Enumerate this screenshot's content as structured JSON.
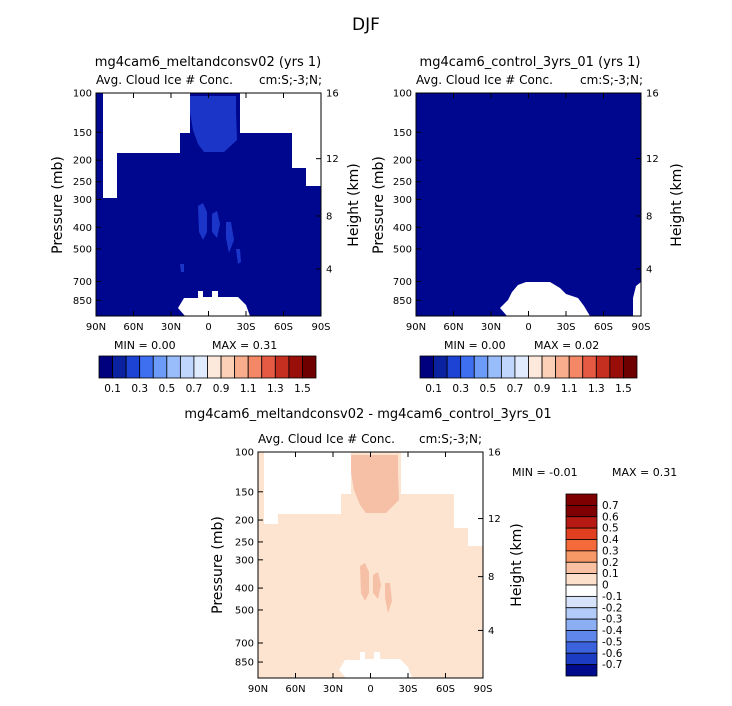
{
  "figure": {
    "title": "DJF",
    "panels": [
      {
        "title": "mg4cam6_meltandconsv02 (yrs 1)",
        "left_subtitle": "Avg. Cloud Ice # Conc.",
        "right_subtitle": "cm:S;-3;N;",
        "ylabel": "Pressure (mb)",
        "y2label": "Height (km)",
        "min_text": "MIN =    0.00",
        "max_text": "MAX =    0.31"
      },
      {
        "title": "mg4cam6_control_3yrs_01 (yrs 1)",
        "left_subtitle": "Avg. Cloud Ice # Conc.",
        "right_subtitle": "cm:S;-3;N;",
        "ylabel": "Pressure (mb)",
        "y2label": "Height (km)",
        "min_text": "MIN =    0.00",
        "max_text": "MAX =    0.02"
      },
      {
        "title": "mg4cam6_meltandconsv02 - mg4cam6_control_3yrs_01",
        "left_subtitle": "Avg. Cloud Ice # Conc.",
        "right_subtitle": "cm:S;-3;N;",
        "ylabel": "Pressure (mb)",
        "y2label": "Height (km)",
        "min_text": "MIN =   -0.01",
        "max_text": "MAX =    0.31"
      }
    ],
    "x_ticks": [
      "90N",
      "60N",
      "30N",
      "0",
      "30S",
      "60S",
      "90S"
    ],
    "p_ticks": [
      "100",
      "150",
      "200",
      "250",
      "300",
      "400",
      "500",
      "700",
      "850"
    ],
    "h_ticks": [
      "16",
      "12",
      "8",
      "4"
    ],
    "colorbar_top_labels": [
      "0.1",
      "0.3",
      "0.5",
      "0.7",
      "0.9",
      "1.1",
      "1.3",
      "1.5"
    ],
    "colorbar_diff_labels": [
      "0.7",
      "0.6",
      "0.5",
      "0.4",
      "0.3",
      "0.2",
      "0.1",
      "0",
      "-0.1",
      "-0.2",
      "-0.3",
      "-0.4",
      "-0.5",
      "-0.6",
      "-0.7"
    ],
    "colors": {
      "navy": "#00078f",
      "mid_blue": "#1a35c8",
      "diff_base": "#fde4d0",
      "diff_hi": "#f6c0a6",
      "top_bar": [
        "#00007f",
        "#0a22a0",
        "#1c43d4",
        "#3d6ff0",
        "#6c9cf8",
        "#99bcfb",
        "#c0d6fc",
        "#e0ebfd",
        "#fde9dc",
        "#fbd0b6",
        "#f8ad8c",
        "#f38766",
        "#e45a43",
        "#c42f1f",
        "#9a0e0a",
        "#6e0000"
      ],
      "diff_bar": [
        "#7e0000",
        "#b71a15",
        "#e0401f",
        "#f56a3a",
        "#f79966",
        "#f9c0a2",
        "#fde0cc",
        "#ffffff",
        "#d6e3fb",
        "#b2cbf8",
        "#8caef3",
        "#5f86ea",
        "#3a63dd",
        "#1c3dc3",
        "#000b8c"
      ]
    }
  },
  "chart_data": [
    {
      "type": "heatmap",
      "title": "mg4cam6_meltandconsv02 (yrs 1)",
      "subtitle": "Avg. Cloud Ice # Conc.",
      "units": "cm:S;-3;N;",
      "xlabel": "",
      "ylabel": "Pressure (mb)",
      "y2label": "Height (km)",
      "x_ticks": [
        "90N",
        "60N",
        "30N",
        "0",
        "30S",
        "60S",
        "90S"
      ],
      "xlim": [
        90,
        -90
      ],
      "ylim": [
        1000,
        100
      ],
      "y_scale": "log",
      "y2_ticks": [
        16,
        12,
        8,
        4
      ],
      "min": 0.0,
      "max": 0.31,
      "colorbar_levels": [
        0.1,
        0.3,
        0.5,
        0.7,
        0.9,
        1.1,
        1.3,
        1.5
      ]
    },
    {
      "type": "heatmap",
      "title": "mg4cam6_control_3yrs_01 (yrs 1)",
      "subtitle": "Avg. Cloud Ice # Conc.",
      "units": "cm:S;-3;N;",
      "xlabel": "",
      "ylabel": "Pressure (mb)",
      "y2label": "Height (km)",
      "x_ticks": [
        "90N",
        "60N",
        "30N",
        "0",
        "30S",
        "60S",
        "90S"
      ],
      "xlim": [
        90,
        -90
      ],
      "ylim": [
        1000,
        100
      ],
      "y_scale": "log",
      "y2_ticks": [
        16,
        12,
        8,
        4
      ],
      "min": 0.0,
      "max": 0.02,
      "colorbar_levels": [
        0.1,
        0.3,
        0.5,
        0.7,
        0.9,
        1.1,
        1.3,
        1.5
      ]
    },
    {
      "type": "heatmap",
      "title": "mg4cam6_meltandconsv02 - mg4cam6_control_3yrs_01",
      "subtitle": "Avg. Cloud Ice # Conc.",
      "units": "cm:S;-3;N;",
      "xlabel": "",
      "ylabel": "Pressure (mb)",
      "y2label": "Height (km)",
      "x_ticks": [
        "90N",
        "60N",
        "30N",
        "0",
        "30S",
        "60S",
        "90S"
      ],
      "xlim": [
        90,
        -90
      ],
      "ylim": [
        1000,
        100
      ],
      "y_scale": "log",
      "y2_ticks": [
        16,
        12,
        8,
        4
      ],
      "min": -0.01,
      "max": 0.31,
      "colorbar_levels": [
        -0.7,
        -0.6,
        -0.5,
        -0.4,
        -0.3,
        -0.2,
        -0.1,
        0,
        0.1,
        0.2,
        0.3,
        0.4,
        0.5,
        0.6,
        0.7
      ]
    }
  ]
}
